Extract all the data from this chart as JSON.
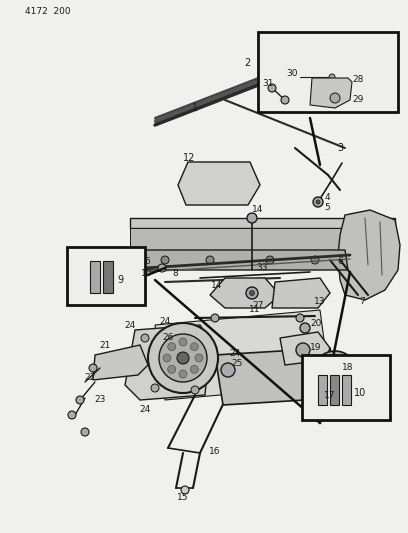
{
  "bg_color": "#f0f0ec",
  "line_color": "#1a1a1a",
  "figsize": [
    4.08,
    5.33
  ],
  "dpi": 100,
  "header": "4172  200"
}
